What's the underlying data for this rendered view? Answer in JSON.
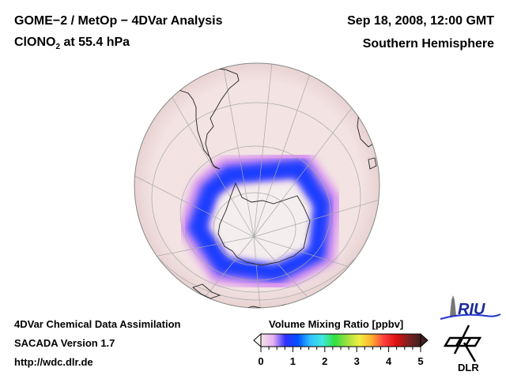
{
  "header": {
    "title_line1": "GOME−2 / MetOp − 4DVar Analysis",
    "species_main": "ClONO",
    "species_sub": "2",
    "species_rest": " at 55.4 hPa",
    "date": "Sep 18, 2008, 12:00 GMT",
    "region": "Southern Hemisphere"
  },
  "footer": {
    "line1": "4DVar Chemical Data Assimilation",
    "line2": "SACADA Version 1.7",
    "line3": "http://wdc.dlr.de"
  },
  "colorbar": {
    "title": "Volume Mixing Ratio [ppbv]",
    "ticks": [
      "0",
      "1",
      "2",
      "3",
      "4",
      "5"
    ],
    "range": [
      0,
      5
    ],
    "colors": [
      "#f4e4e4",
      "#e8b0f0",
      "#3030ff",
      "#0050ff",
      "#30c0ff",
      "#40e8e0",
      "#30e040",
      "#a0e040",
      "#f0f040",
      "#ffb030",
      "#ff4040",
      "#e01010",
      "#802020",
      "#402020"
    ]
  },
  "map": {
    "projection": "orthographic, south polar",
    "background_color": "#f3e3e3",
    "vortex_color": "#1a3cff",
    "inner_color": "#f4eeee"
  },
  "logos": {
    "riu": "RIU",
    "dlr": "DLR"
  }
}
